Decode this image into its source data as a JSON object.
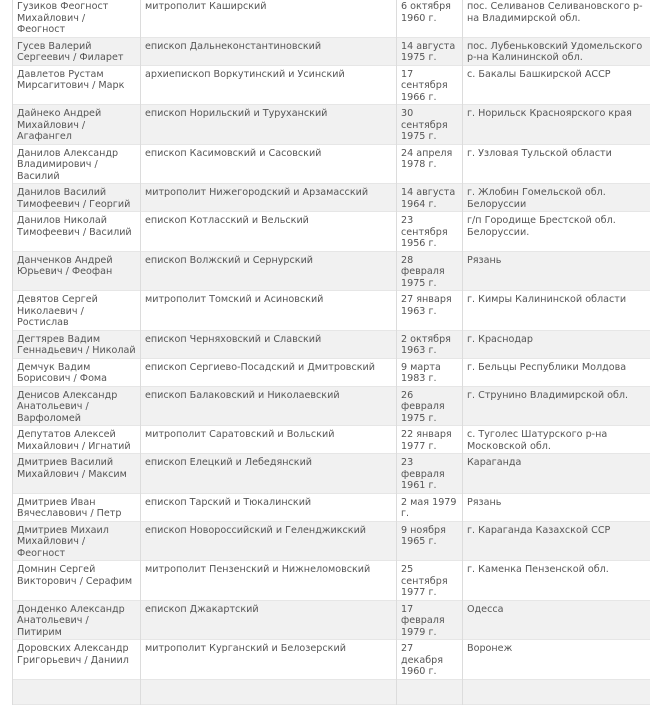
{
  "table": {
    "rows": [
      {
        "name": "Гузиков Феогност Михайлович / Феогност",
        "title": "митрополит Каширский",
        "birth": "6 октября 1960 г.",
        "place": "пос. Селиванов Селивановского р-на Владимирской обл."
      },
      {
        "name": "Гусев Валерий Сергеевич / Филарет",
        "title": "епископ Дальнеконстантиновский",
        "birth": "14 августа 1975 г.",
        "place": "пос. Лубеньковский Удомельского р-на Калининской обл."
      },
      {
        "name": "Давлетов Рустам Мирсагитович / Марк",
        "title": "архиепископ Воркутинский и Усинский",
        "birth": "17 сентября 1966 г.",
        "place": "с. Бакалы Башкирской АССР"
      },
      {
        "name": "Дайнеко Андрей Михайлович / Агафангел",
        "title": "епископ Норильский и Туруханский",
        "birth": "30 сентября 1975 г.",
        "place": "г. Норильск Красноярского края"
      },
      {
        "name": "Данилов Александр Владимирович / Василий",
        "title": "епископ Касимовский и Сасовский",
        "birth": "24 апреля 1978 г.",
        "place": "г. Узловая Тульской области"
      },
      {
        "name": "Данилов Василий Тимофеевич / Георгий",
        "title": "митрополит Нижегородский и Арзамасский",
        "birth": "14 августа 1964 г.",
        "place": "г. Жлобин Гомельской обл. Белоруссии"
      },
      {
        "name": "Данилов Николай Тимофеевич / Василий",
        "title": "епископ Котласский и Вельский",
        "birth": "23 сентября 1956 г.",
        "place": "г/п Городище Брестской обл. Белоруссии."
      },
      {
        "name": "Данченков Андрей Юрьевич / Феофан",
        "title": "епископ Волжский и Сернурский",
        "birth": "28 февраля 1975 г.",
        "place": "Рязань"
      },
      {
        "name": "Девятов Сергей Николаевич / Ростислав",
        "title": "митрополит Томский и Асиновский",
        "birth": "27 января 1963 г.",
        "place": "г. Кимры Калининской области"
      },
      {
        "name": "Дегтярев Вадим Геннадьевич / Николай",
        "title": "епископ Черняховский и Славский",
        "birth": "2 октября 1963 г.",
        "place": "г. Краснодар"
      },
      {
        "name": "Демчук Вадим Борисович / Фома",
        "title": "епископ Сергиево-Посадский и Дмитровский",
        "birth": "9 марта 1983 г.",
        "place": "г. Бельцы Республики Молдова"
      },
      {
        "name": "Денисов Александр Анатольевич / Варфоломей",
        "title": "епископ Балаковский и Николаевский",
        "birth": "26 февраля 1975 г.",
        "place": "г. Струнино Владимирской обл."
      },
      {
        "name": "Депутатов Алексей Михайлович / Игнатий",
        "title": "митрополит Саратовский и Вольский",
        "birth": "22 января 1977 г.",
        "place": "с. Туголес Шатурского р-на Московской обл."
      },
      {
        "name": "Дмитриев Василий Михайлович / Максим",
        "title": "епископ Елецкий и Лебедянский",
        "birth": "23 февраля 1961 г.",
        "place": "Караганда"
      },
      {
        "name": "Дмитриев Иван Вячеславович / Петр",
        "title": "епископ Тарский и Тюкалинский",
        "birth": "2 мая 1979 г.",
        "place": "Рязань"
      },
      {
        "name": "Дмитриев Михаил Михайлович / Феогност",
        "title": "епископ Новороссийский и Геленджикский",
        "birth": "9 ноября 1965 г.",
        "place": "г. Караганда Казахской ССР"
      },
      {
        "name": "Домнин Сергей Викторович / Серафим",
        "title": "митрополит Пензенский и Нижнеломовский",
        "birth": "25 сентября 1977 г.",
        "place": "г. Каменка Пензенской обл."
      },
      {
        "name": "Донденко Александр Анатольевич / Питирим",
        "title": "епископ Джакартский",
        "birth": "17 февраля 1979 г.",
        "place": "Одесса"
      },
      {
        "name": "Доровских Александр Григорьевич / Даниил",
        "title": "митрополит Курганский и Белозерский",
        "birth": "27 декабря 1960 г.",
        "place": "Воронеж"
      }
    ]
  }
}
